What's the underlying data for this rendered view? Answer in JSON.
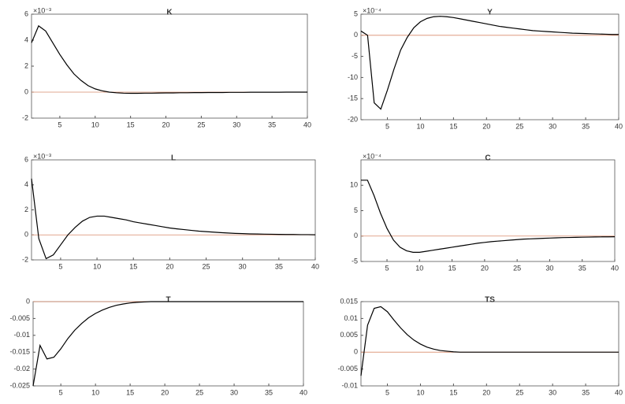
{
  "chart_data": [
    {
      "type": "line",
      "title": "K",
      "y_multiplier": "×10⁻³",
      "color": "#000000",
      "zero_line_color": "#d98c6c",
      "x": [
        1,
        2,
        3,
        4,
        5,
        6,
        7,
        8,
        9,
        10,
        11,
        12,
        13,
        14,
        15,
        16,
        17,
        18,
        19,
        20,
        21,
        22,
        23,
        24,
        25,
        26,
        27,
        28,
        29,
        30,
        31,
        32,
        33,
        34,
        35,
        36,
        37,
        38,
        39,
        40
      ],
      "values": [
        3.8,
        5.1,
        4.7,
        3.8,
        2.9,
        2.1,
        1.4,
        0.9,
        0.5,
        0.25,
        0.1,
        0.0,
        -0.05,
        -0.08,
        -0.09,
        -0.09,
        -0.08,
        -0.08,
        -0.07,
        -0.06,
        -0.06,
        -0.05,
        -0.05,
        -0.04,
        -0.04,
        -0.03,
        -0.03,
        -0.03,
        -0.02,
        -0.02,
        -0.02,
        -0.01,
        -0.01,
        -0.01,
        -0.01,
        -0.01,
        0,
        0,
        0,
        0
      ],
      "xlim": [
        1,
        40
      ],
      "xticks": [
        5,
        10,
        15,
        20,
        25,
        30,
        35,
        40
      ],
      "ylim": [
        -2,
        6
      ],
      "yticks": [
        -2,
        0,
        2,
        4,
        6
      ]
    },
    {
      "type": "line",
      "title": "Y",
      "y_multiplier": "×10⁻⁴",
      "color": "#000000",
      "zero_line_color": "#d98c6c",
      "x": [
        1,
        2,
        3,
        4,
        5,
        6,
        7,
        8,
        9,
        10,
        11,
        12,
        13,
        14,
        15,
        16,
        17,
        18,
        19,
        20,
        21,
        22,
        23,
        24,
        25,
        26,
        27,
        28,
        29,
        30,
        31,
        32,
        33,
        34,
        35,
        36,
        37,
        38,
        39,
        40
      ],
      "values": [
        1,
        0,
        -16,
        -17.5,
        -13,
        -8,
        -3.5,
        -0.5,
        1.8,
        3.2,
        4.0,
        4.4,
        4.5,
        4.4,
        4.2,
        3.9,
        3.6,
        3.3,
        3.0,
        2.7,
        2.4,
        2.1,
        1.9,
        1.7,
        1.5,
        1.3,
        1.1,
        1.0,
        0.9,
        0.8,
        0.7,
        0.6,
        0.5,
        0.45,
        0.4,
        0.35,
        0.3,
        0.25,
        0.2,
        0.2
      ],
      "xlim": [
        1,
        40
      ],
      "xticks": [
        5,
        10,
        15,
        20,
        25,
        30,
        35,
        40
      ],
      "ylim": [
        -20,
        5
      ],
      "yticks": [
        -20,
        -15,
        -10,
        -5,
        0,
        5
      ]
    },
    {
      "type": "line",
      "title": "L",
      "y_multiplier": "×10⁻³",
      "color": "#000000",
      "zero_line_color": "#d98c6c",
      "x": [
        1,
        2,
        3,
        4,
        5,
        6,
        7,
        8,
        9,
        10,
        11,
        12,
        13,
        14,
        15,
        16,
        17,
        18,
        19,
        20,
        21,
        22,
        23,
        24,
        25,
        26,
        27,
        28,
        29,
        30,
        31,
        32,
        33,
        34,
        35,
        36,
        37,
        38,
        39,
        40
      ],
      "values": [
        4.5,
        -0.3,
        -1.9,
        -1.6,
        -0.8,
        0.0,
        0.6,
        1.1,
        1.4,
        1.5,
        1.5,
        1.4,
        1.3,
        1.2,
        1.05,
        0.95,
        0.85,
        0.75,
        0.65,
        0.55,
        0.48,
        0.42,
        0.36,
        0.3,
        0.26,
        0.22,
        0.18,
        0.15,
        0.12,
        0.1,
        0.08,
        0.07,
        0.06,
        0.05,
        0.04,
        0.03,
        0.03,
        0.02,
        0.02,
        0.01
      ],
      "xlim": [
        1,
        40
      ],
      "xticks": [
        5,
        10,
        15,
        20,
        25,
        30,
        35,
        40
      ],
      "ylim": [
        -2,
        6
      ],
      "yticks": [
        -2,
        0,
        2,
        4,
        6
      ]
    },
    {
      "type": "line",
      "title": "C",
      "y_multiplier": "×10⁻⁴",
      "color": "#000000",
      "zero_line_color": "#d98c6c",
      "x": [
        1,
        2,
        3,
        4,
        5,
        6,
        7,
        8,
        9,
        10,
        11,
        12,
        13,
        14,
        15,
        16,
        17,
        18,
        19,
        20,
        21,
        22,
        23,
        24,
        25,
        26,
        27,
        28,
        29,
        30,
        31,
        32,
        33,
        34,
        35,
        36,
        37,
        38,
        39,
        40
      ],
      "values": [
        11,
        11,
        8,
        4.5,
        1.5,
        -0.8,
        -2.2,
        -2.9,
        -3.2,
        -3.2,
        -3.0,
        -2.8,
        -2.6,
        -2.4,
        -2.2,
        -2.0,
        -1.8,
        -1.6,
        -1.4,
        -1.25,
        -1.1,
        -1.0,
        -0.9,
        -0.8,
        -0.7,
        -0.6,
        -0.55,
        -0.5,
        -0.45,
        -0.4,
        -0.35,
        -0.3,
        -0.28,
        -0.25,
        -0.22,
        -0.2,
        -0.18,
        -0.16,
        -0.15,
        -0.14
      ],
      "xlim": [
        1,
        40
      ],
      "xticks": [
        5,
        10,
        15,
        20,
        25,
        30,
        35,
        40
      ],
      "ylim": [
        -5,
        15
      ],
      "yticks": [
        -5,
        0,
        5,
        10
      ]
    },
    {
      "type": "line",
      "title": "T",
      "color": "#000000",
      "zero_line_color": "#d98c6c",
      "x": [
        1,
        2,
        3,
        4,
        5,
        6,
        7,
        8,
        9,
        10,
        11,
        12,
        13,
        14,
        15,
        16,
        17,
        18,
        19,
        20,
        21,
        22,
        23,
        24,
        25,
        26,
        27,
        28,
        29,
        30,
        31,
        32,
        33,
        34,
        35,
        36,
        37,
        38,
        39,
        40
      ],
      "values": [
        -0.025,
        -0.013,
        -0.017,
        -0.0165,
        -0.014,
        -0.011,
        -0.0085,
        -0.0065,
        -0.0048,
        -0.0035,
        -0.0025,
        -0.0017,
        -0.0011,
        -0.0007,
        -0.0004,
        -0.0002,
        -0.0001,
        0,
        0,
        0,
        0,
        0,
        0,
        0,
        0,
        0,
        0,
        0,
        0,
        0,
        0,
        0,
        0,
        0,
        0,
        0,
        0,
        0,
        0,
        0
      ],
      "xlim": [
        1,
        40
      ],
      "xticks": [
        5,
        10,
        15,
        20,
        25,
        30,
        35,
        40
      ],
      "ylim": [
        -0.025,
        0
      ],
      "yticks": [
        -0.025,
        -0.02,
        -0.015,
        -0.01,
        -0.005,
        0
      ]
    },
    {
      "type": "line",
      "title": "TS",
      "color": "#000000",
      "zero_line_color": "#d98c6c",
      "x": [
        1,
        2,
        3,
        4,
        5,
        6,
        7,
        8,
        9,
        10,
        11,
        12,
        13,
        14,
        15,
        16,
        17,
        18,
        19,
        20,
        21,
        22,
        23,
        24,
        25,
        26,
        27,
        28,
        29,
        30,
        31,
        32,
        33,
        34,
        35,
        36,
        37,
        38,
        39,
        40
      ],
      "values": [
        -0.007,
        0.008,
        0.013,
        0.0135,
        0.012,
        0.0095,
        0.0072,
        0.0052,
        0.0036,
        0.0024,
        0.0015,
        0.0009,
        0.0005,
        0.0003,
        0.0001,
        0,
        0,
        0,
        0,
        0,
        0,
        0,
        0,
        0,
        0,
        0,
        0,
        0,
        0,
        0,
        0,
        0,
        0,
        0,
        0,
        0,
        0,
        0,
        0,
        0
      ],
      "xlim": [
        1,
        40
      ],
      "xticks": [
        5,
        10,
        15,
        20,
        25,
        30,
        35,
        40
      ],
      "ylim": [
        -0.01,
        0.015
      ],
      "yticks": [
        -0.01,
        -0.005,
        0,
        0.005,
        0.01,
        0.015
      ]
    }
  ]
}
